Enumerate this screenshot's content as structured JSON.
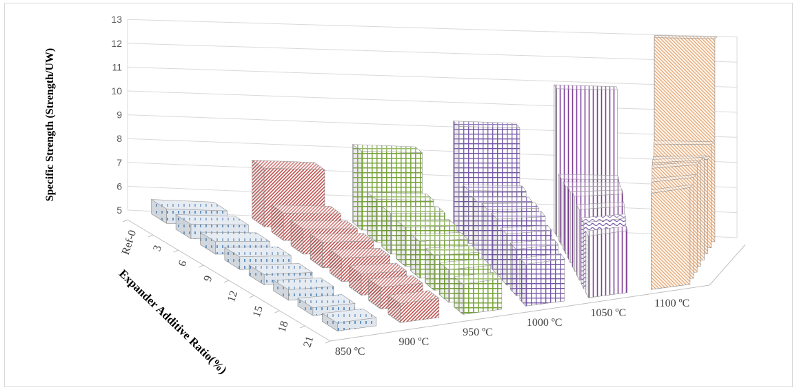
{
  "chart_data": {
    "type": "bar",
    "subtype": "3d-column",
    "ylabel": "Specific Strength (Strength/UW)",
    "depth_axis_label": "Expander Additive Ratio(%)",
    "ylim": [
      5,
      13
    ],
    "yticks": [
      5,
      6,
      7,
      8,
      9,
      10,
      11,
      12,
      13
    ],
    "categories": [
      "850 ºC",
      "900  ºC",
      "950  ºC",
      "1000  ºC",
      "1050 ºC",
      "1100  ºC"
    ],
    "depth_categories": [
      "Ref-0",
      "3",
      "6",
      "9",
      "12",
      "15",
      "18",
      "21"
    ],
    "grid": true,
    "series_colors": [
      "#4a7fb5",
      "#c0504d",
      "#77a33a",
      "#7154a4",
      "#7e3e98",
      "#e5a673"
    ],
    "values": [
      [
        5.6,
        5.6,
        5.5,
        5.5,
        5.4,
        5.4,
        5.3,
        5.3
      ],
      [
        7.4,
        6.1,
        6.0,
        6.0,
        5.9,
        5.8,
        5.8,
        5.7
      ],
      [
        8.2,
        6.7,
        6.6,
        6.5,
        6.4,
        6.3,
        6.2,
        6.1
      ],
      [
        9.3,
        7.1,
        7.0,
        7.1,
        7.1,
        6.9,
        6.7,
        6.5
      ],
      [
        10.9,
        7.6,
        7.6,
        7.7,
        7.8,
        7.6,
        7.4,
        7.2
      ],
      [
        13.0,
        9.0,
        8.6,
        8.8,
        8.9,
        8.9,
        8.6,
        8.4
      ]
    ]
  }
}
